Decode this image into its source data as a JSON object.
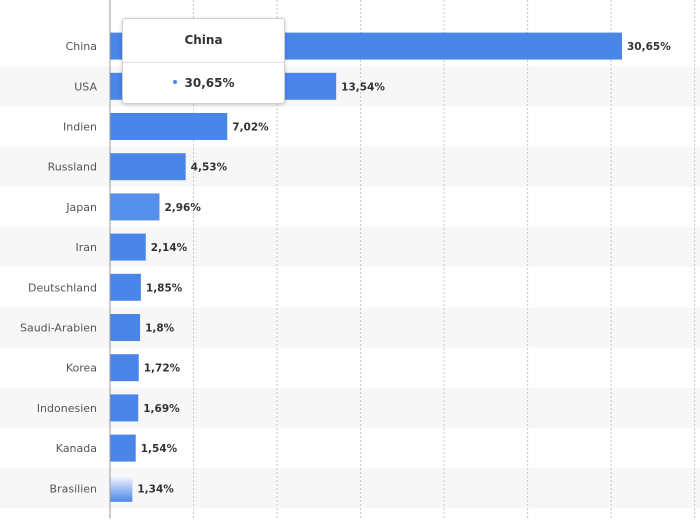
{
  "chart_data": {
    "type": "bar",
    "orientation": "horizontal",
    "categories": [
      "China",
      "USA",
      "Indien",
      "Russland",
      "Japan",
      "Iran",
      "Deutschland",
      "Saudi-Arabien",
      "Korea",
      "Indonesien",
      "Kanada",
      "Brasilien"
    ],
    "values": [
      30.65,
      13.54,
      7.02,
      4.53,
      2.96,
      2.14,
      1.85,
      1.8,
      1.72,
      1.69,
      1.54,
      1.34
    ],
    "value_labels": [
      "30,65%",
      "13,54%",
      "7,02%",
      "4,53%",
      "2,96%",
      "2,14%",
      "1,85%",
      "1,8%",
      "1,72%",
      "1,69%",
      "1,54%",
      "1,34%"
    ],
    "xlim": [
      0,
      35
    ],
    "grid": true,
    "bar_color": "#4a86e8",
    "title": "",
    "xlabel": "",
    "ylabel": ""
  },
  "tooltip": {
    "title": "China",
    "value": "30,65%"
  }
}
